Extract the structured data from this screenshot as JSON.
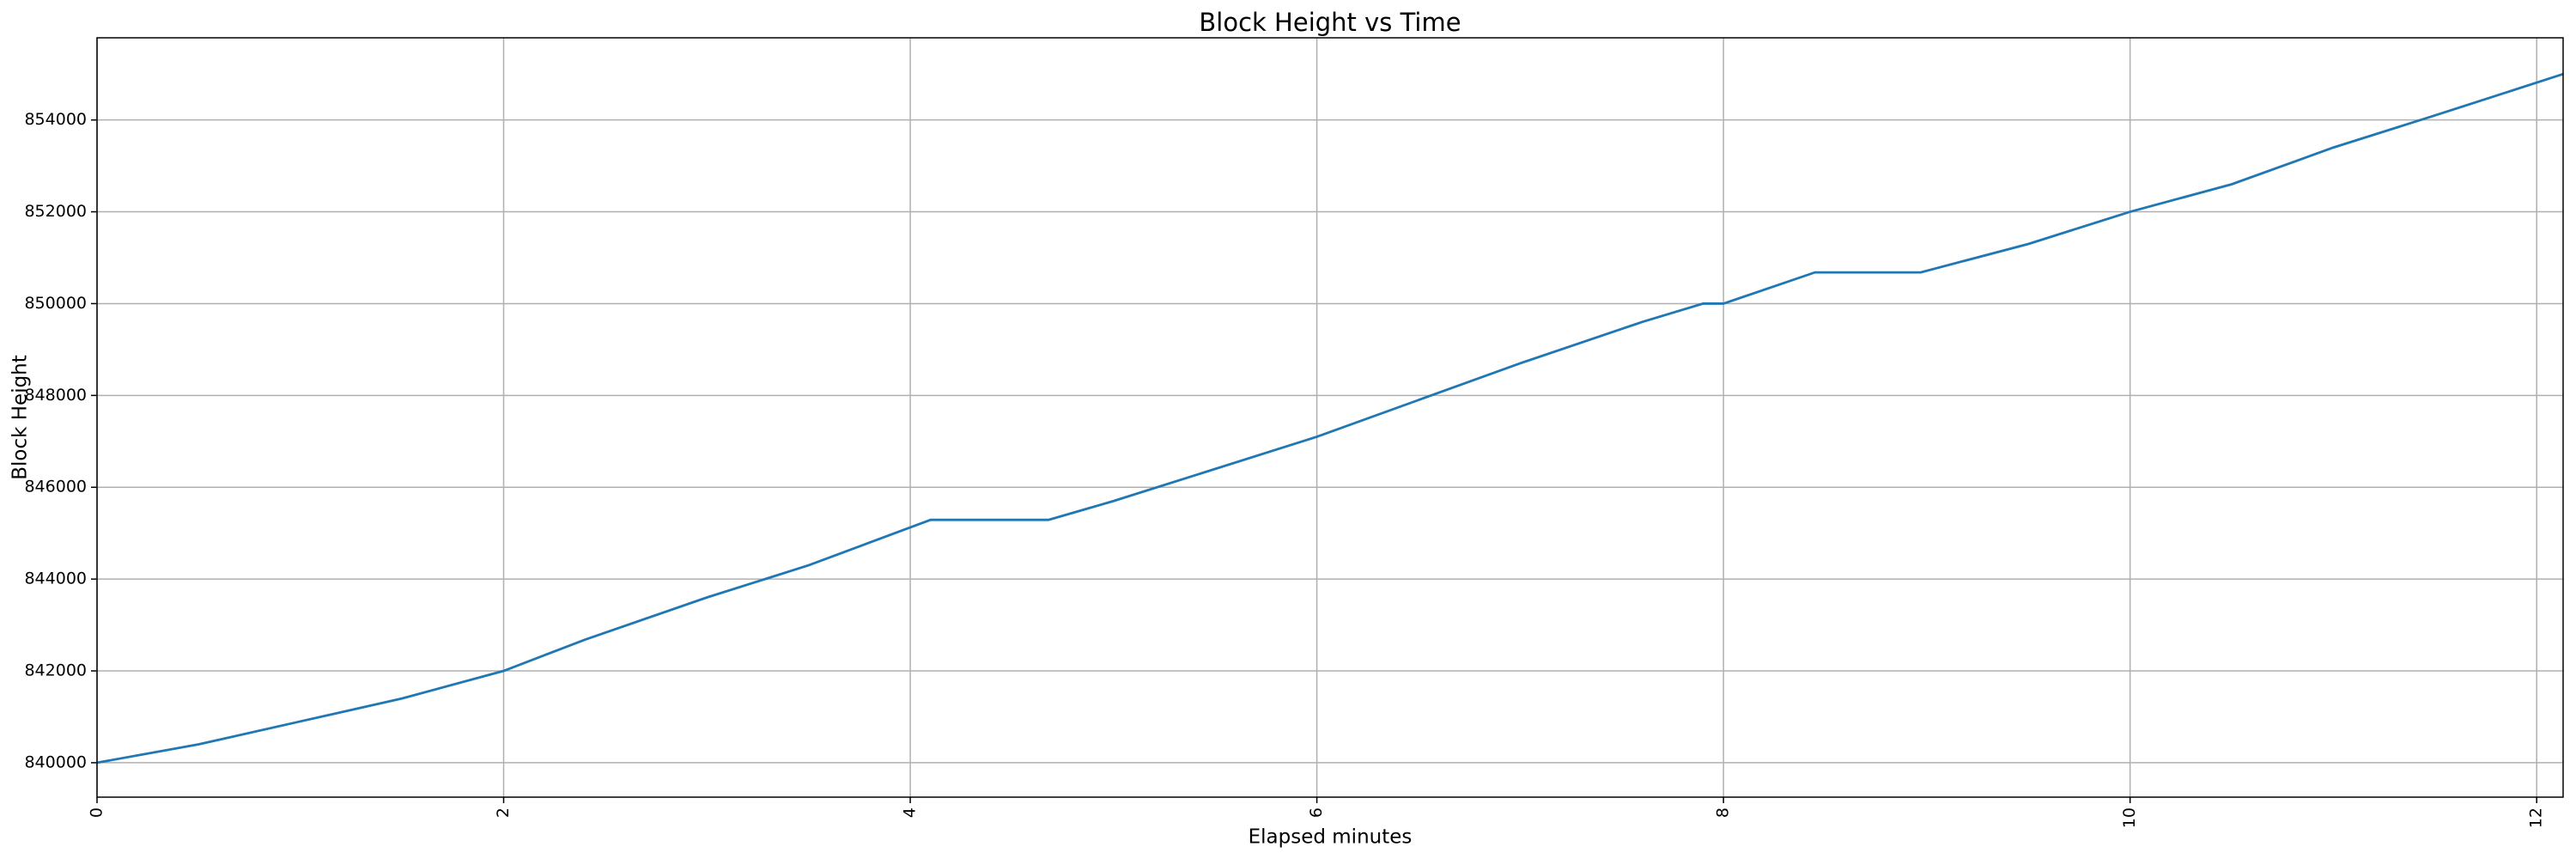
{
  "chart_data": {
    "type": "line",
    "title": "Block Height vs Time",
    "x_label": "Elapsed minutes",
    "y_label": "Block Height",
    "x": [
      0,
      0.5,
      1,
      1.5,
      2,
      2.4,
      3,
      3.5,
      4.1,
      4.68,
      5,
      6,
      7,
      7.6,
      7.9,
      8.0,
      8.45,
      8.97,
      9.5,
      10,
      10.5,
      11,
      11.5,
      12.13
    ],
    "series": [
      {
        "name": "Block Height",
        "color": "#1f77b4",
        "values": [
          840000,
          840400,
          840900,
          841400,
          842000,
          842680,
          843600,
          844300,
          845290,
          845290,
          845700,
          847100,
          848700,
          849600,
          850000,
          850000,
          850680,
          850680,
          851300,
          852000,
          852600,
          853400,
          854100,
          855000
        ]
      }
    ],
    "xlim": [
      0,
      12.13
    ],
    "ylim": [
      839250,
      855790
    ],
    "xticks": [
      0,
      2,
      4,
      6,
      8,
      10,
      12
    ],
    "yticks": [
      840000,
      842000,
      844000,
      846000,
      848000,
      850000,
      852000,
      854000
    ],
    "grid": true
  }
}
